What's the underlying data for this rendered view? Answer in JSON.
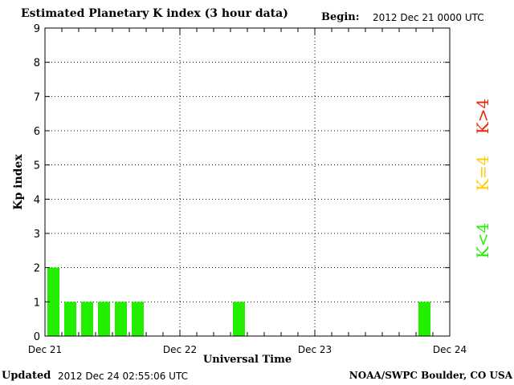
{
  "header": {
    "title": "Estimated Planetary K index (3 hour data)",
    "begin_label": "Begin:",
    "begin_value": "2012 Dec 21 0000 UTC"
  },
  "footer": {
    "updated_label": "Updated",
    "updated_value": "2012 Dec 24 02:55:06 UTC",
    "credit": "NOAA/SWPC Boulder, CO USA"
  },
  "legend": {
    "items": [
      {
        "label": "K<4",
        "color": "#22ee00"
      },
      {
        "label": "K=4",
        "color": "#ffcc00"
      },
      {
        "label": "K>4",
        "color": "#ee2200"
      }
    ]
  },
  "chart_data": {
    "type": "bar",
    "title": "Estimated Planetary K index (3 hour data)",
    "xlabel": "Universal Time",
    "ylabel": "Kp index",
    "ylim": [
      0,
      9
    ],
    "yticks": [
      0,
      1,
      2,
      3,
      4,
      5,
      6,
      7,
      8,
      9
    ],
    "xticks": [
      "Dec 21",
      "Dec 22",
      "Dec 23",
      "Dec 24"
    ],
    "interval_hours": 3,
    "grid": true,
    "bar_color": "#22ee00",
    "values": [
      2,
      1,
      1,
      1,
      1,
      1,
      0,
      0,
      0,
      0,
      0,
      1,
      0,
      0,
      0,
      0,
      0,
      0,
      0,
      0,
      0,
      0,
      1,
      0
    ]
  }
}
